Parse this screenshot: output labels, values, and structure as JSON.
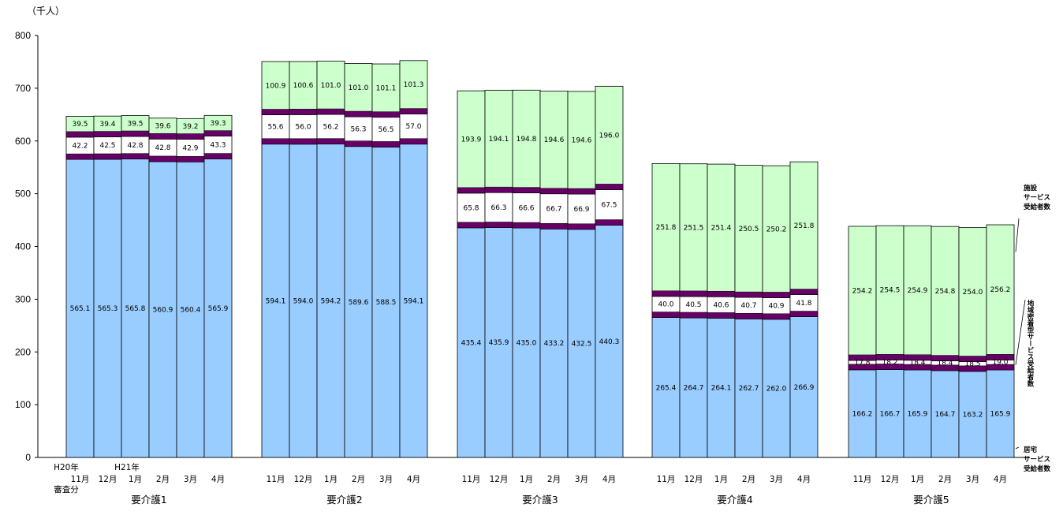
{
  "chart_data": {
    "type": "bar",
    "stacked": true,
    "unit_label": "（千人）",
    "ylim": [
      0,
      800
    ],
    "yticks": [
      0,
      100,
      200,
      300,
      400,
      500,
      600,
      700,
      800
    ],
    "categories": [
      "11月",
      "12月",
      "1月",
      "2月",
      "3月",
      "4月"
    ],
    "extra_labels": {
      "h20": "H20年",
      "h21": "H21年",
      "shinsa": "審査分"
    },
    "groups": [
      {
        "name": "要介護1",
        "home": [
          565.1,
          565.3,
          565.8,
          560.9,
          560.4,
          565.9
        ],
        "community": [
          42.2,
          42.5,
          42.8,
          42.8,
          42.9,
          43.3
        ],
        "facility": [
          39.5,
          39.4,
          39.5,
          39.6,
          39.2,
          39.3
        ]
      },
      {
        "name": "要介護2",
        "home": [
          594.1,
          594.0,
          594.2,
          589.6,
          588.5,
          594.1
        ],
        "community": [
          55.6,
          56.0,
          56.2,
          56.3,
          56.5,
          57.0
        ],
        "facility": [
          100.9,
          100.6,
          101.0,
          101.0,
          101.1,
          101.3
        ]
      },
      {
        "name": "要介護3",
        "home": [
          435.4,
          435.9,
          435.0,
          433.2,
          432.5,
          440.3
        ],
        "community": [
          65.8,
          66.3,
          66.6,
          66.7,
          66.9,
          67.5
        ],
        "facility": [
          193.9,
          194.1,
          194.8,
          194.6,
          194.6,
          196.0
        ]
      },
      {
        "name": "要介護4",
        "home": [
          265.4,
          264.7,
          264.1,
          262.7,
          262.0,
          266.9
        ],
        "community": [
          40.0,
          40.5,
          40.6,
          40.7,
          40.9,
          41.8
        ],
        "facility": [
          251.8,
          251.5,
          251.4,
          250.5,
          250.2,
          251.8
        ]
      },
      {
        "name": "要介護5",
        "home": [
          166.2,
          166.7,
          165.9,
          164.7,
          163.2,
          165.9
        ],
        "community": [
          17.8,
          18.2,
          18.4,
          18.4,
          18.5,
          19.0
        ],
        "facility": [
          254.2,
          254.5,
          254.9,
          254.8,
          254.0,
          256.2
        ]
      }
    ],
    "series": [
      {
        "key": "facility",
        "name": "施設サービス受給者数",
        "color": "#ccffcc"
      },
      {
        "key": "community",
        "name": "地域密着型サービス受給者数",
        "color": "#ffffff"
      },
      {
        "key": "home",
        "name": "居宅サービス受給者数",
        "color": "#99ccff"
      }
    ],
    "band_color": "#660066"
  }
}
